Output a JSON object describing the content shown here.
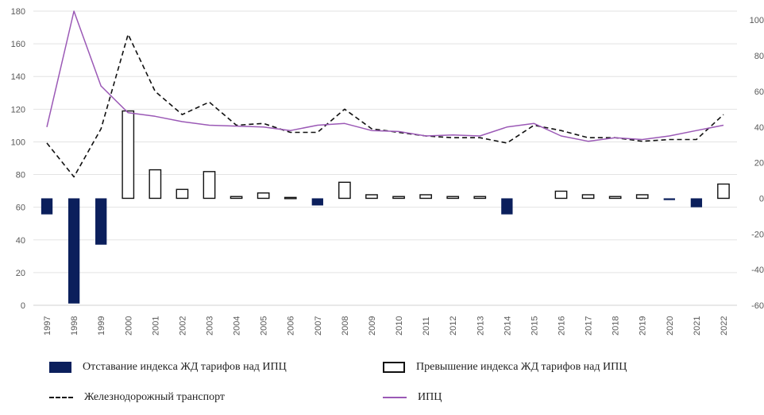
{
  "chart_data": {
    "type": "bar+line",
    "categories": [
      "1997",
      "1998",
      "1999",
      "2000",
      "2001",
      "2002",
      "2003",
      "2004",
      "2005",
      "2006",
      "2007",
      "2008",
      "2009",
      "2010",
      "2011",
      "2012",
      "2013",
      "2014",
      "2015",
      "2016",
      "2017",
      "2018",
      "2019",
      "2020",
      "2021",
      "2022"
    ],
    "left_axis": {
      "ylim": [
        0,
        180
      ],
      "ticks": [
        "0",
        "20",
        "40",
        "60",
        "80",
        "100",
        "120",
        "140",
        "160",
        "180"
      ]
    },
    "right_axis": {
      "ylim": [
        -60,
        105
      ],
      "ticks": [
        "-60",
        "-40",
        "-20",
        "0",
        "20",
        "40",
        "60",
        "80",
        "100"
      ]
    },
    "series": [
      {
        "name": "Отставание индекса ЖД тарифов над ИПЦ",
        "kind": "bar",
        "axis": "right",
        "color": "#0b1f5c",
        "values": [
          -9,
          -59,
          -26,
          0,
          0,
          0,
          0,
          0,
          0,
          0,
          -4,
          0,
          0,
          0,
          0,
          0,
          0,
          -9,
          0,
          0,
          0,
          0,
          0,
          -1,
          -5,
          0
        ]
      },
      {
        "name": "Превышение индекса ЖД тарифов над ИПЦ",
        "kind": "bar",
        "axis": "right",
        "color": "#ffffff",
        "values": [
          0,
          0,
          0,
          49,
          16,
          5,
          15,
          1,
          3,
          0.5,
          0,
          9,
          2,
          1,
          2,
          1,
          1,
          0,
          0,
          4,
          2,
          1,
          2,
          0,
          0,
          8
        ]
      },
      {
        "name": "Железнодорожный транспорт",
        "kind": "line",
        "axis": "right",
        "color": "#111111",
        "dash": true,
        "values": [
          31,
          12,
          39,
          92,
          60,
          47,
          54,
          41,
          42,
          37,
          37,
          50,
          39,
          37,
          35,
          34,
          34,
          31,
          41,
          38,
          34,
          34,
          32,
          33,
          33,
          47
        ]
      },
      {
        "name": "ИПЦ",
        "kind": "line",
        "axis": "right",
        "color": "#9b59b6",
        "values": [
          40,
          105,
          63,
          48,
          46,
          43,
          41,
          40.5,
          40,
          38,
          41,
          42,
          38,
          37.5,
          35,
          35.5,
          35,
          40,
          42,
          35,
          32,
          34,
          33,
          35,
          38,
          41
        ]
      }
    ],
    "grid": true,
    "legend_position": "bottom"
  }
}
